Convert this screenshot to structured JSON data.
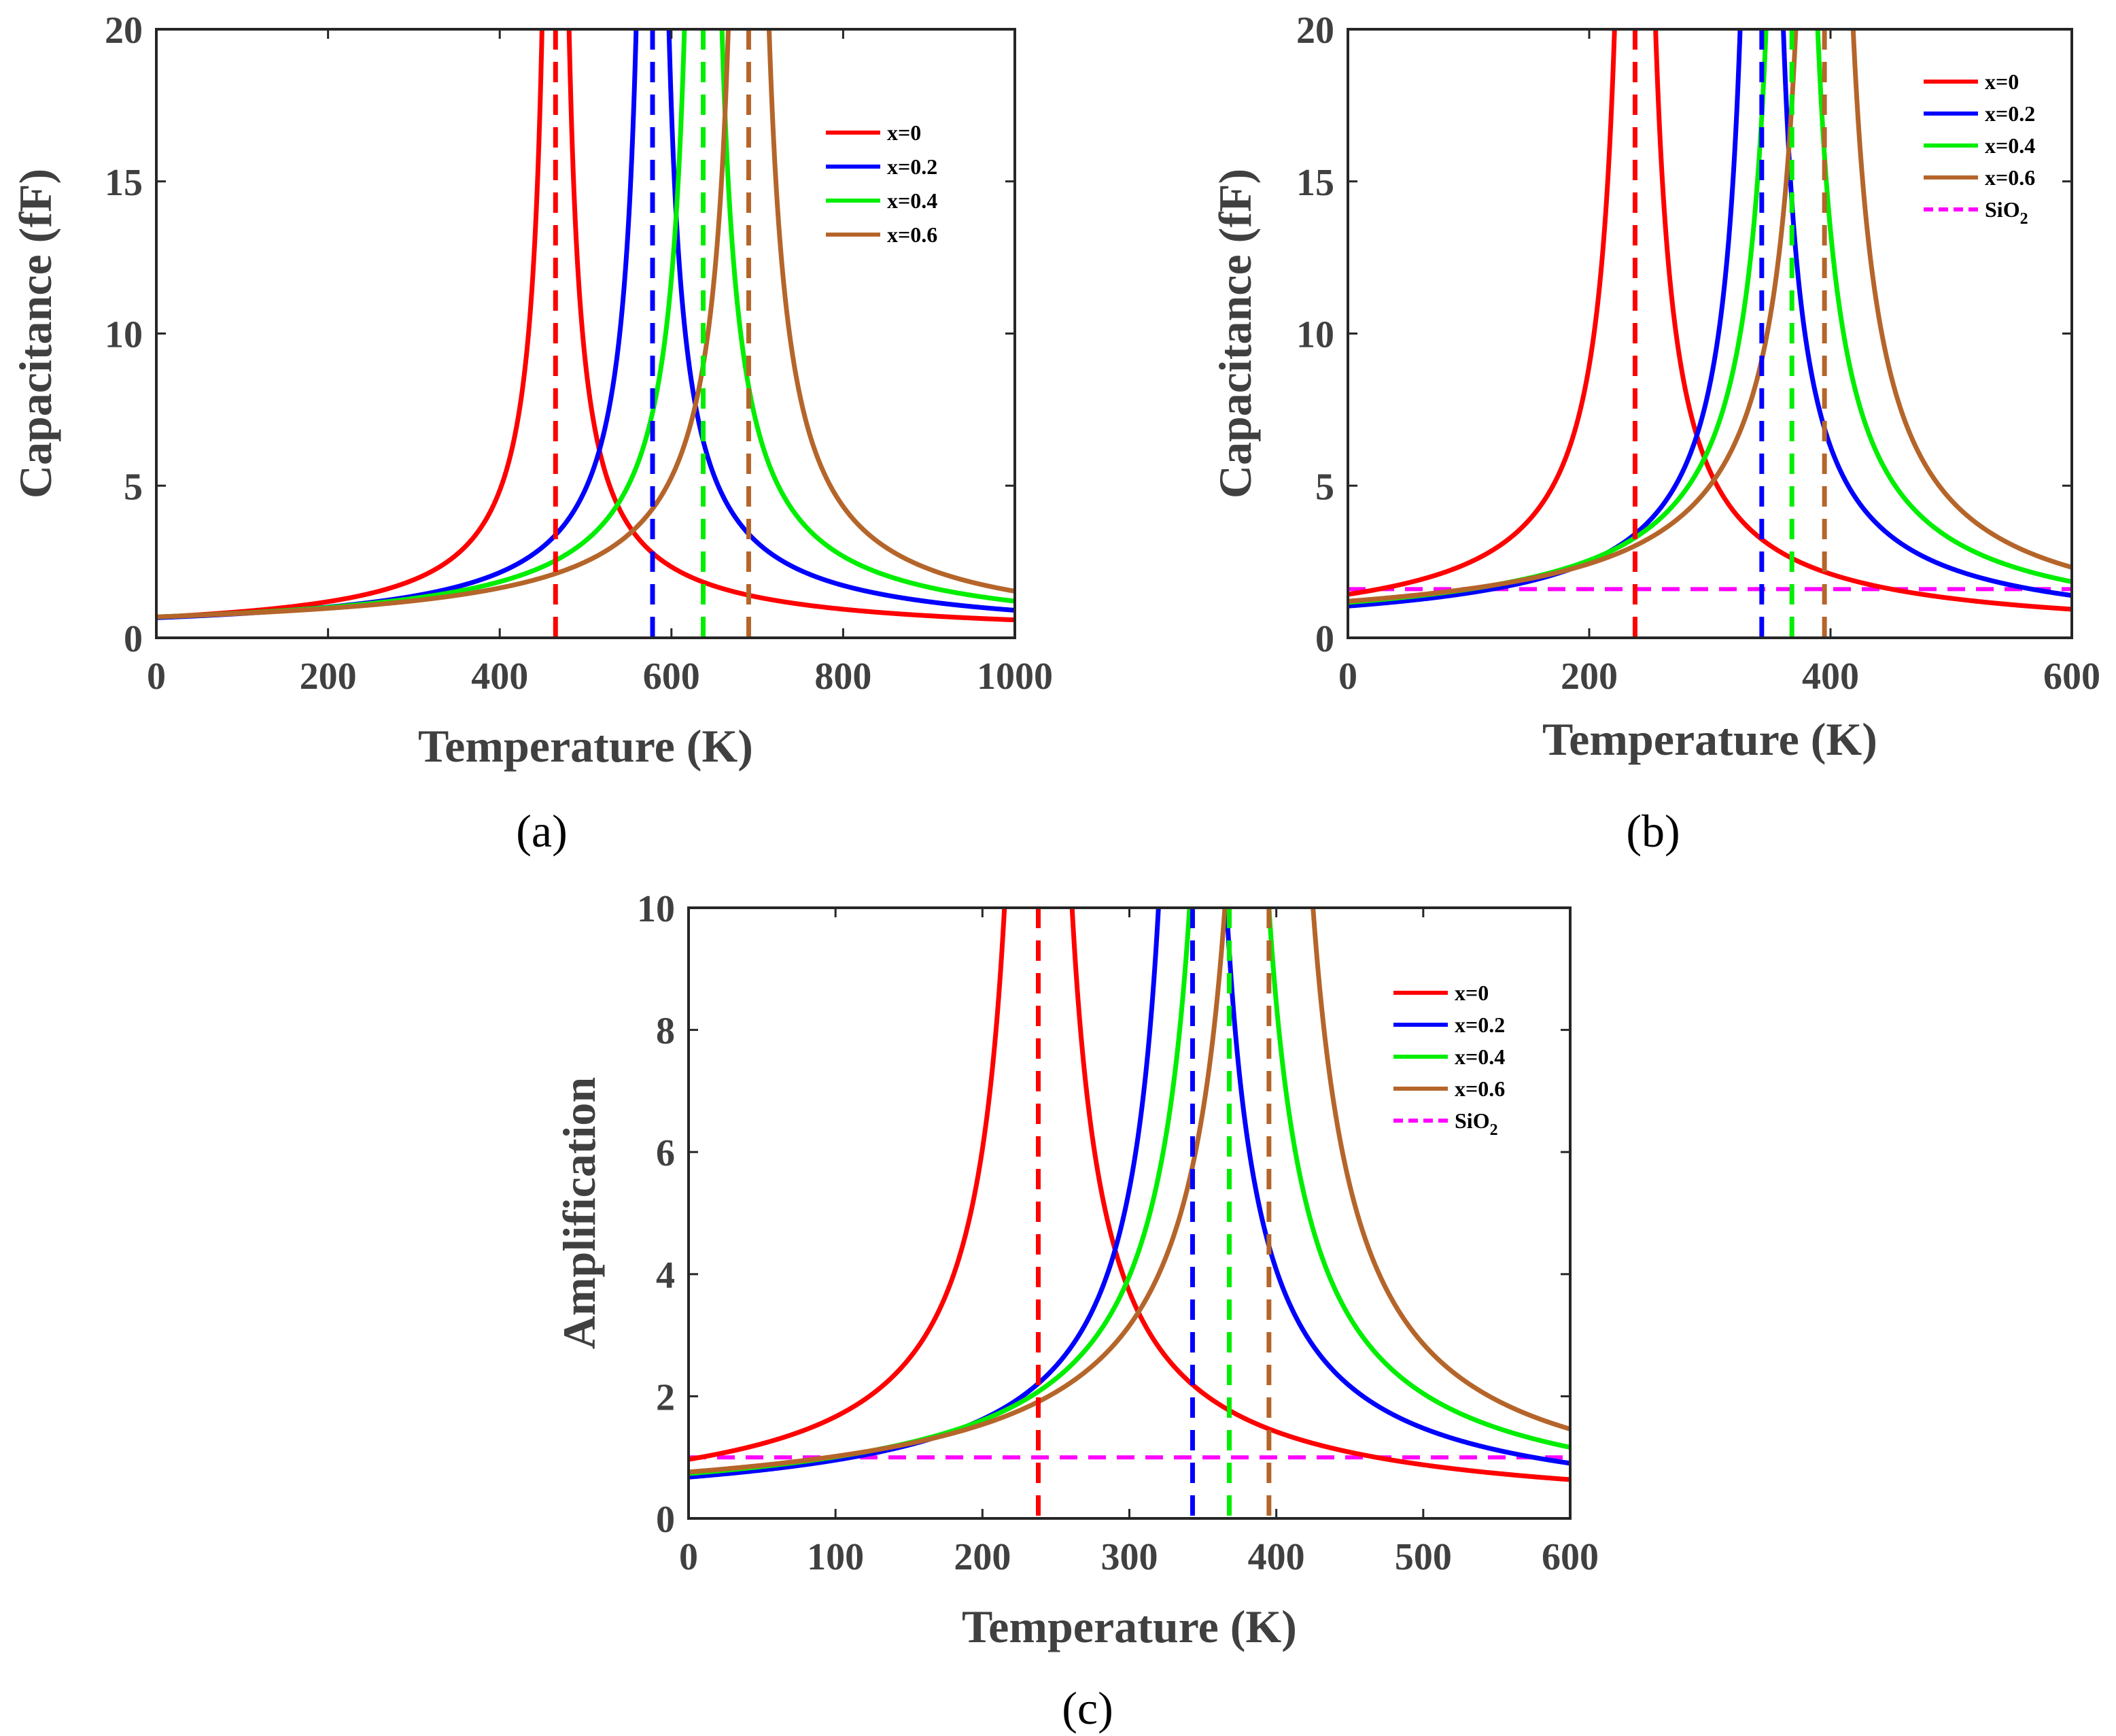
{
  "chart_data": [
    {
      "id": "a",
      "type": "line",
      "panel_label": "(a)",
      "xlabel": "Temperature (K)",
      "ylabel": "Capacitance (fF)",
      "xlim": [
        0,
        1000
      ],
      "ylim": [
        0,
        20
      ],
      "xticks": [
        0,
        200,
        400,
        600,
        800,
        1000
      ],
      "yticks": [
        0,
        5,
        10,
        15,
        20
      ],
      "legend_position": "top-right",
      "series": [
        {
          "name": "x=0",
          "color": "#ff0000",
          "style": "solid",
          "t_critical": 465,
          "a_below": 315,
          "a_above": 315
        },
        {
          "name": "x=0.2",
          "color": "#0000ff",
          "style": "solid",
          "t_critical": 578,
          "a_below": 382,
          "a_above": 382
        },
        {
          "name": "x=0.4",
          "color": "#00ee00",
          "style": "solid",
          "t_critical": 637,
          "a_below": 437,
          "a_above": 437
        },
        {
          "name": "x=0.6",
          "color": "#b5652a",
          "style": "solid",
          "t_critical": 690,
          "a_below": 475,
          "a_above": 475
        }
      ],
      "vlines": [
        {
          "x": 465,
          "color": "#ff0000"
        },
        {
          "x": 578,
          "color": "#0000ff"
        },
        {
          "x": 637,
          "color": "#00ee00"
        },
        {
          "x": 690,
          "color": "#b5652a"
        }
      ]
    },
    {
      "id": "b",
      "type": "line",
      "panel_label": "(b)",
      "xlabel": "Temperature (K)",
      "ylabel": "Capacitance (fF)",
      "xlim": [
        0,
        600
      ],
      "ylim": [
        0,
        20
      ],
      "xticks": [
        0,
        200,
        400,
        600
      ],
      "yticks": [
        0,
        5,
        10,
        15,
        20
      ],
      "legend_position": "top-right",
      "series": [
        {
          "name": "x=0",
          "color": "#ff0000",
          "style": "solid",
          "t_critical": 238,
          "a_below": 340,
          "a_above": 340
        },
        {
          "name": "x=0.2",
          "color": "#0000ff",
          "style": "solid",
          "t_critical": 343,
          "a_below": 358,
          "a_above": 358
        },
        {
          "name": "x=0.4",
          "color": "#00ee00",
          "style": "solid",
          "t_critical": 368,
          "a_below": 428,
          "a_above": 428
        },
        {
          "name": "x=0.6",
          "color": "#b5652a",
          "style": "solid",
          "t_critical": 395,
          "a_below": 475,
          "a_above": 475
        }
      ],
      "hline": {
        "name": "SiO",
        "subscript": "2",
        "y": 1.6,
        "color": "#ff00ff",
        "style": "dashed"
      },
      "vlines": [
        {
          "x": 238,
          "color": "#ff0000"
        },
        {
          "x": 343,
          "color": "#0000ff"
        },
        {
          "x": 368,
          "color": "#00ee00"
        },
        {
          "x": 395,
          "color": "#b5652a"
        }
      ]
    },
    {
      "id": "c",
      "type": "line",
      "panel_label": "(c)",
      "xlabel": "Temperature (K)",
      "ylabel": "Amplification",
      "xlim": [
        0,
        600
      ],
      "ylim": [
        0,
        10
      ],
      "xticks": [
        0,
        100,
        200,
        300,
        400,
        500,
        600
      ],
      "yticks": [
        0,
        2,
        4,
        6,
        8,
        10
      ],
      "legend_position": "top-right",
      "series": [
        {
          "name": "x=0",
          "color": "#ff0000",
          "style": "solid",
          "t_critical": 238,
          "a_below": 230,
          "a_above": 230
        },
        {
          "name": "x=0.2",
          "color": "#0000ff",
          "style": "solid",
          "t_critical": 343,
          "a_below": 232,
          "a_above": 232
        },
        {
          "name": "x=0.4",
          "color": "#00ee00",
          "style": "solid",
          "t_critical": 368,
          "a_below": 270,
          "a_above": 270
        },
        {
          "name": "x=0.6",
          "color": "#b5652a",
          "style": "solid",
          "t_critical": 395,
          "a_below": 300,
          "a_above": 300
        }
      ],
      "hline": {
        "name": "SiO",
        "subscript": "2",
        "y": 1.0,
        "color": "#ff00ff",
        "style": "dashed"
      },
      "vlines": [
        {
          "x": 238,
          "color": "#ff0000"
        },
        {
          "x": 343,
          "color": "#0000ff"
        },
        {
          "x": 368,
          "color": "#00ee00"
        },
        {
          "x": 395,
          "color": "#b5652a"
        }
      ]
    }
  ]
}
